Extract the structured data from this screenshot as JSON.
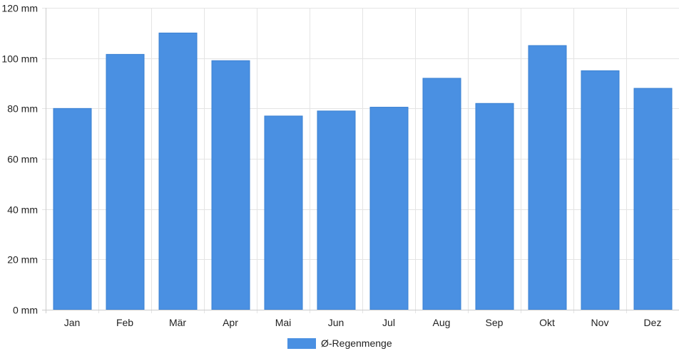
{
  "chart_data": {
    "type": "bar",
    "categories": [
      "Jan",
      "Feb",
      "Mär",
      "Apr",
      "Mai",
      "Jun",
      "Jul",
      "Aug",
      "Sep",
      "Okt",
      "Nov",
      "Dez"
    ],
    "series": [
      {
        "name": "Ø-Regenmenge",
        "color": "#4a90e2",
        "values": [
          80,
          101.5,
          110,
          99,
          77,
          79,
          80.5,
          92,
          82,
          105,
          95,
          88
        ]
      }
    ],
    "title": "",
    "xlabel": "",
    "ylabel": "",
    "ylim": [
      0,
      120
    ],
    "yticks": [
      0,
      20,
      40,
      60,
      80,
      100,
      120
    ],
    "y_unit": "mm",
    "grid": true,
    "legend_position": "bottom"
  }
}
